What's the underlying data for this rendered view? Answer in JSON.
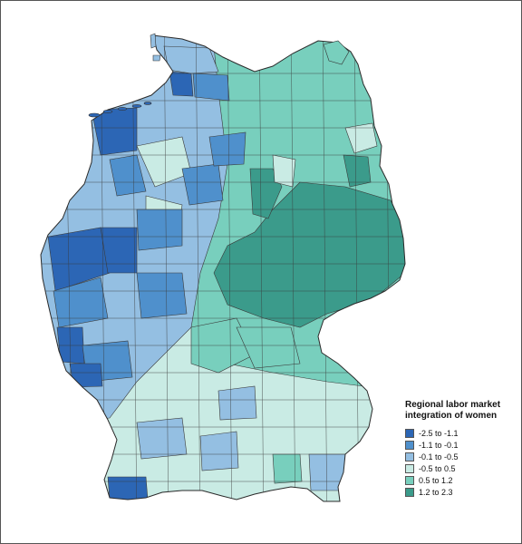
{
  "legend": {
    "title_line1": "Regional labor market",
    "title_line2": "integration of women",
    "items": [
      {
        "label": "-2.5 to -1.1",
        "color": "#2c66b5"
      },
      {
        "label": "-1.1 to -0.1",
        "color": "#4f90cc"
      },
      {
        "label": "-0.1 to -0.5",
        "color": "#94bfe2"
      },
      {
        "label": "-0.5 to 0.5",
        "color": "#c9ebe4"
      },
      {
        "label": "0.5 to 1.2",
        "color": "#78cfbd"
      },
      {
        "label": "1.2 to 2.3",
        "color": "#3b9b8b"
      }
    ]
  }
}
